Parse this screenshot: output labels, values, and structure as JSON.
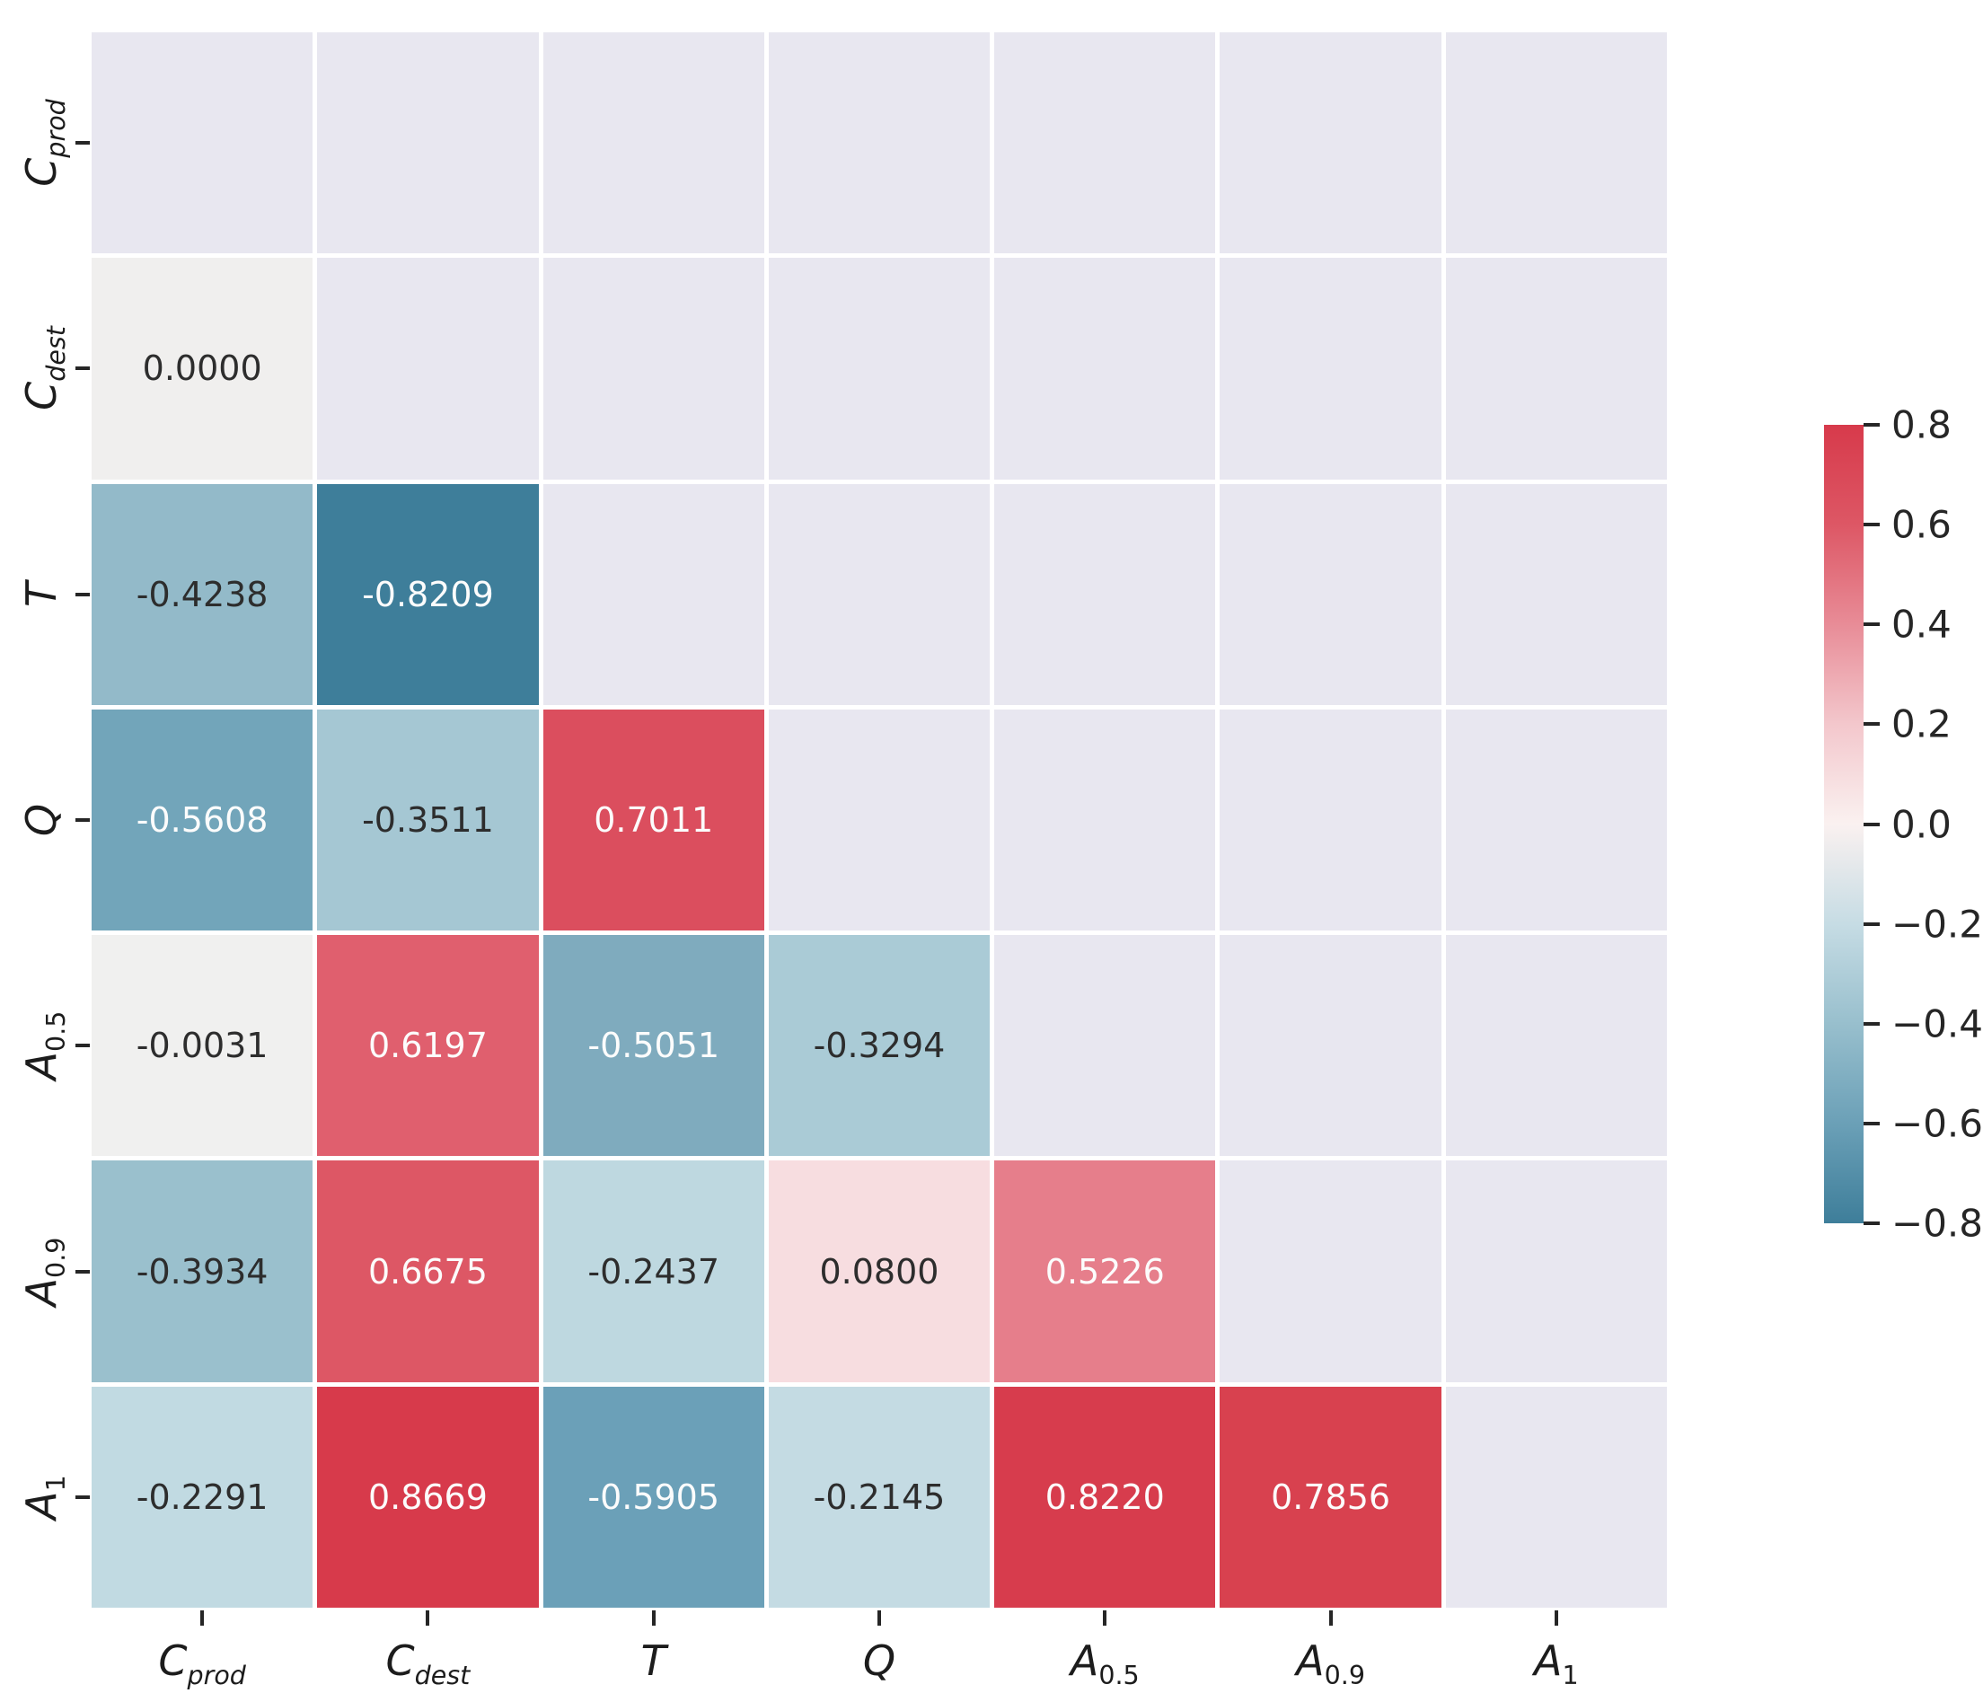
{
  "chart_data": {
    "type": "heatmap",
    "title": "",
    "description": "Lower-triangular correlation matrix heatmap with annotated coefficients",
    "variables": [
      {
        "base": "C",
        "sub": "prod"
      },
      {
        "base": "C",
        "sub": "dest"
      },
      {
        "base": "T",
        "sub": ""
      },
      {
        "base": "Q",
        "sub": ""
      },
      {
        "base": "A",
        "sub": "0.5"
      },
      {
        "base": "A",
        "sub": "0.9"
      },
      {
        "base": "A",
        "sub": "1"
      }
    ],
    "matrix": [
      [
        null,
        null,
        null,
        null,
        null,
        null,
        null
      ],
      [
        0.0,
        null,
        null,
        null,
        null,
        null,
        null
      ],
      [
        -0.4238,
        -0.8209,
        null,
        null,
        null,
        null,
        null
      ],
      [
        -0.5608,
        -0.3511,
        0.7011,
        null,
        null,
        null,
        null
      ],
      [
        -0.0031,
        0.6197,
        -0.5051,
        -0.3294,
        null,
        null,
        null
      ],
      [
        -0.3934,
        0.6675,
        -0.2437,
        0.08,
        0.5226,
        null,
        null
      ],
      [
        -0.2291,
        0.8669,
        -0.5905,
        -0.2145,
        0.822,
        0.7856,
        null
      ]
    ],
    "cells": [
      {
        "row": 1,
        "col": 0,
        "text": "0.0000",
        "bg": "#f0efee",
        "fg": "#2d2d2d"
      },
      {
        "row": 2,
        "col": 0,
        "text": "-0.4238",
        "bg": "#93bac9",
        "fg": "#2d2d2d"
      },
      {
        "row": 2,
        "col": 1,
        "text": "-0.8209",
        "bg": "#3e7e9a",
        "fg": "#fcfcfc"
      },
      {
        "row": 3,
        "col": 0,
        "text": "-0.5608",
        "bg": "#72a5ba",
        "fg": "#fcfcfc"
      },
      {
        "row": 3,
        "col": 1,
        "text": "-0.3511",
        "bg": "#a5c7d3",
        "fg": "#2d2d2d"
      },
      {
        "row": 3,
        "col": 2,
        "text": "0.7011",
        "bg": "#db4e5e",
        "fg": "#fcfcfc"
      },
      {
        "row": 4,
        "col": 0,
        "text": "-0.0031",
        "bg": "#f0f0ef",
        "fg": "#2d2d2d"
      },
      {
        "row": 4,
        "col": 1,
        "text": "0.6197",
        "bg": "#e05f6e",
        "fg": "#fcfcfc"
      },
      {
        "row": 4,
        "col": 2,
        "text": "-0.5051",
        "bg": "#7fabbe",
        "fg": "#fcfcfc"
      },
      {
        "row": 4,
        "col": 3,
        "text": "-0.3294",
        "bg": "#aacbd6",
        "fg": "#2d2d2d"
      },
      {
        "row": 5,
        "col": 0,
        "text": "-0.3934",
        "bg": "#9ac0cd",
        "fg": "#2d2d2d"
      },
      {
        "row": 5,
        "col": 1,
        "text": "0.6675",
        "bg": "#dd5765",
        "fg": "#fcfcfc"
      },
      {
        "row": 5,
        "col": 2,
        "text": "-0.2437",
        "bg": "#bed8e0",
        "fg": "#2d2d2d"
      },
      {
        "row": 5,
        "col": 3,
        "text": "0.0800",
        "bg": "#f7dde0",
        "fg": "#2d2d2d"
      },
      {
        "row": 5,
        "col": 4,
        "text": "0.5226",
        "bg": "#e67e8b",
        "fg": "#fcfcfc"
      },
      {
        "row": 6,
        "col": 0,
        "text": "-0.2291",
        "bg": "#c1dae2",
        "fg": "#2d2d2d"
      },
      {
        "row": 6,
        "col": 1,
        "text": "0.8669",
        "bg": "#d73a4b",
        "fg": "#fcfcfc"
      },
      {
        "row": 6,
        "col": 2,
        "text": "-0.5905",
        "bg": "#6ba0b8",
        "fg": "#fcfcfc"
      },
      {
        "row": 6,
        "col": 3,
        "text": "-0.2145",
        "bg": "#c4dbe3",
        "fg": "#2d2d2d"
      },
      {
        "row": 6,
        "col": 4,
        "text": "0.8220",
        "bg": "#d73c4d",
        "fg": "#fcfcfc"
      },
      {
        "row": 6,
        "col": 5,
        "text": "0.7856",
        "bg": "#d8414f",
        "fg": "#fcfcfc"
      }
    ],
    "mask_color": "#e8e7f0",
    "grid_line_color": "#ffffff",
    "colorbar": {
      "min": -0.8,
      "max": 0.8,
      "tick_labels": [
        "0.8",
        "0.6",
        "0.4",
        "0.2",
        "0.0",
        "−0.2",
        "−0.4",
        "−0.6",
        "−0.8"
      ],
      "gradient": [
        "#d73a4b",
        "#dd5765",
        "#e88c97",
        "#f3c7cc",
        "#faf1f0",
        "#c6dce4",
        "#98bfcd",
        "#6ba0b7",
        "#3e7e9a"
      ],
      "legend_position": "right"
    },
    "axis": {
      "tick_color": "#262626",
      "label_color": "#1c1c1c",
      "grid": false
    }
  }
}
